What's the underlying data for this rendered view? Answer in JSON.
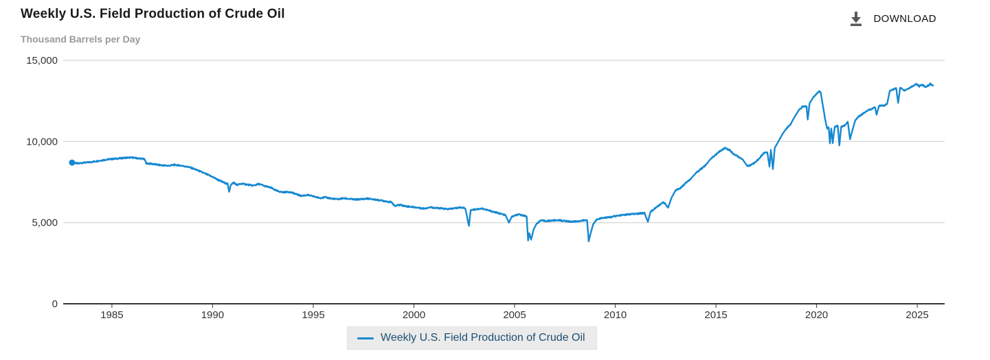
{
  "header": {
    "title": "Weekly U.S. Field Production of Crude Oil",
    "subtitle": "Thousand Barrels per Day",
    "download_label": "DOWNLOAD"
  },
  "legend": {
    "label": "Weekly U.S. Field Production of Crude Oil"
  },
  "colors": {
    "line": "#1588d1",
    "grid": "#cccccc",
    "axis": "#333333",
    "axis_text": "#333333",
    "legend_bg": "#ebebeb",
    "legend_text": "#1d4f73",
    "download_icon": "#595959"
  },
  "chart_data": {
    "type": "line",
    "title": "Weekly U.S. Field Production of Crude Oil",
    "ylabel": "Thousand Barrels per Day",
    "xlabel": "",
    "grid": "horizontal",
    "legend_position": "bottom",
    "xlim": [
      1982.58,
      2026.36
    ],
    "ylim": [
      0,
      15000
    ],
    "xticks": [
      1985,
      1990,
      1995,
      2000,
      2005,
      2010,
      2015,
      2020,
      2025
    ],
    "yticks": [
      {
        "value": 0,
        "label": "0"
      },
      {
        "value": 5000,
        "label": "5,000"
      },
      {
        "value": 10000,
        "label": "10,000"
      },
      {
        "value": 15000,
        "label": "15,000"
      }
    ],
    "weekly_jitter": 40,
    "first_point_marker": true,
    "series": [
      {
        "name": "Weekly U.S. Field Production of Crude Oil",
        "units": "Thousand Barrels per Day",
        "points": [
          [
            1983.02,
            8700
          ],
          [
            1983.3,
            8640
          ],
          [
            1983.6,
            8700
          ],
          [
            1983.9,
            8720
          ],
          [
            1984.2,
            8780
          ],
          [
            1984.5,
            8840
          ],
          [
            1984.8,
            8900
          ],
          [
            1985.1,
            8930
          ],
          [
            1985.4,
            8960
          ],
          [
            1985.7,
            9000
          ],
          [
            1986.0,
            9010
          ],
          [
            1986.3,
            8960
          ],
          [
            1986.6,
            8920
          ],
          [
            1986.72,
            8650
          ],
          [
            1987.0,
            8620
          ],
          [
            1987.4,
            8540
          ],
          [
            1987.8,
            8500
          ],
          [
            1988.1,
            8560
          ],
          [
            1988.4,
            8520
          ],
          [
            1988.8,
            8430
          ],
          [
            1989.1,
            8300
          ],
          [
            1989.4,
            8150
          ],
          [
            1989.7,
            7980
          ],
          [
            1990.0,
            7820
          ],
          [
            1990.25,
            7650
          ],
          [
            1990.5,
            7500
          ],
          [
            1990.75,
            7380
          ],
          [
            1990.82,
            6900
          ],
          [
            1990.9,
            7300
          ],
          [
            1991.05,
            7480
          ],
          [
            1991.2,
            7320
          ],
          [
            1991.45,
            7400
          ],
          [
            1991.7,
            7350
          ],
          [
            1992.0,
            7280
          ],
          [
            1992.3,
            7380
          ],
          [
            1992.6,
            7250
          ],
          [
            1992.9,
            7150
          ],
          [
            1993.2,
            6950
          ],
          [
            1993.5,
            6870
          ],
          [
            1993.8,
            6900
          ],
          [
            1994.1,
            6780
          ],
          [
            1994.4,
            6650
          ],
          [
            1994.7,
            6700
          ],
          [
            1995.0,
            6620
          ],
          [
            1995.3,
            6520
          ],
          [
            1995.6,
            6560
          ],
          [
            1995.9,
            6480
          ],
          [
            1996.2,
            6440
          ],
          [
            1996.5,
            6500
          ],
          [
            1996.8,
            6460
          ],
          [
            1997.1,
            6420
          ],
          [
            1997.4,
            6450
          ],
          [
            1997.7,
            6480
          ],
          [
            1998.0,
            6430
          ],
          [
            1998.3,
            6380
          ],
          [
            1998.6,
            6320
          ],
          [
            1998.9,
            6250
          ],
          [
            1999.05,
            6020
          ],
          [
            1999.3,
            6100
          ],
          [
            1999.6,
            6010
          ],
          [
            1999.9,
            5970
          ],
          [
            2000.2,
            5920
          ],
          [
            2000.5,
            5870
          ],
          [
            2000.8,
            5950
          ],
          [
            2001.1,
            5900
          ],
          [
            2001.4,
            5870
          ],
          [
            2001.7,
            5830
          ],
          [
            2002.0,
            5880
          ],
          [
            2002.3,
            5940
          ],
          [
            2002.55,
            5900
          ],
          [
            2002.73,
            4800
          ],
          [
            2002.82,
            5780
          ],
          [
            2003.1,
            5830
          ],
          [
            2003.4,
            5870
          ],
          [
            2003.7,
            5750
          ],
          [
            2004.0,
            5650
          ],
          [
            2004.3,
            5550
          ],
          [
            2004.55,
            5450
          ],
          [
            2004.72,
            5000
          ],
          [
            2004.85,
            5350
          ],
          [
            2005.0,
            5430
          ],
          [
            2005.2,
            5500
          ],
          [
            2005.45,
            5440
          ],
          [
            2005.6,
            5380
          ],
          [
            2005.67,
            3900
          ],
          [
            2005.73,
            4350
          ],
          [
            2005.82,
            3950
          ],
          [
            2005.95,
            4600
          ],
          [
            2006.1,
            4950
          ],
          [
            2006.3,
            5130
          ],
          [
            2006.6,
            5100
          ],
          [
            2006.9,
            5130
          ],
          [
            2007.2,
            5150
          ],
          [
            2007.5,
            5100
          ],
          [
            2007.8,
            5060
          ],
          [
            2008.1,
            5080
          ],
          [
            2008.35,
            5120
          ],
          [
            2008.6,
            5150
          ],
          [
            2008.68,
            3850
          ],
          [
            2008.78,
            4350
          ],
          [
            2008.9,
            4900
          ],
          [
            2009.1,
            5220
          ],
          [
            2009.4,
            5300
          ],
          [
            2009.7,
            5330
          ],
          [
            2010.0,
            5400
          ],
          [
            2010.3,
            5460
          ],
          [
            2010.6,
            5500
          ],
          [
            2010.9,
            5530
          ],
          [
            2011.2,
            5560
          ],
          [
            2011.45,
            5600
          ],
          [
            2011.62,
            5050
          ],
          [
            2011.75,
            5670
          ],
          [
            2011.95,
            5850
          ],
          [
            2012.15,
            6050
          ],
          [
            2012.4,
            6250
          ],
          [
            2012.63,
            5950
          ],
          [
            2012.8,
            6550
          ],
          [
            2013.0,
            7000
          ],
          [
            2013.25,
            7150
          ],
          [
            2013.5,
            7450
          ],
          [
            2013.75,
            7700
          ],
          [
            2014.0,
            8050
          ],
          [
            2014.25,
            8300
          ],
          [
            2014.5,
            8550
          ],
          [
            2014.75,
            8950
          ],
          [
            2015.0,
            9190
          ],
          [
            2015.2,
            9400
          ],
          [
            2015.45,
            9610
          ],
          [
            2015.7,
            9450
          ],
          [
            2015.9,
            9220
          ],
          [
            2016.1,
            9080
          ],
          [
            2016.35,
            8850
          ],
          [
            2016.55,
            8500
          ],
          [
            2016.75,
            8550
          ],
          [
            2016.95,
            8700
          ],
          [
            2017.15,
            8950
          ],
          [
            2017.35,
            9250
          ],
          [
            2017.55,
            9350
          ],
          [
            2017.66,
            8450
          ],
          [
            2017.73,
            9480
          ],
          [
            2017.83,
            8300
          ],
          [
            2017.92,
            9600
          ],
          [
            2018.1,
            10000
          ],
          [
            2018.3,
            10450
          ],
          [
            2018.5,
            10800
          ],
          [
            2018.7,
            11050
          ],
          [
            2018.9,
            11500
          ],
          [
            2019.1,
            11900
          ],
          [
            2019.3,
            12150
          ],
          [
            2019.5,
            12150
          ],
          [
            2019.56,
            11350
          ],
          [
            2019.65,
            12350
          ],
          [
            2019.85,
            12750
          ],
          [
            2020.0,
            12950
          ],
          [
            2020.13,
            13100
          ],
          [
            2020.2,
            13050
          ],
          [
            2020.3,
            12300
          ],
          [
            2020.42,
            11400
          ],
          [
            2020.52,
            10800
          ],
          [
            2020.6,
            10900
          ],
          [
            2020.66,
            9880
          ],
          [
            2020.73,
            10800
          ],
          [
            2020.8,
            9900
          ],
          [
            2020.9,
            10900
          ],
          [
            2021.05,
            11000
          ],
          [
            2021.13,
            9760
          ],
          [
            2021.22,
            10900
          ],
          [
            2021.4,
            11000
          ],
          [
            2021.55,
            11200
          ],
          [
            2021.66,
            10140
          ],
          [
            2021.78,
            10700
          ],
          [
            2021.92,
            11300
          ],
          [
            2022.1,
            11550
          ],
          [
            2022.3,
            11700
          ],
          [
            2022.5,
            11900
          ],
          [
            2022.72,
            12000
          ],
          [
            2022.9,
            12100
          ],
          [
            2022.98,
            11650
          ],
          [
            2023.1,
            12200
          ],
          [
            2023.3,
            12200
          ],
          [
            2023.5,
            12300
          ],
          [
            2023.63,
            13100
          ],
          [
            2023.8,
            13200
          ],
          [
            2023.95,
            13300
          ],
          [
            2024.05,
            12380
          ],
          [
            2024.15,
            13300
          ],
          [
            2024.35,
            13150
          ],
          [
            2024.55,
            13250
          ],
          [
            2024.75,
            13400
          ],
          [
            2024.95,
            13550
          ],
          [
            2025.1,
            13400
          ],
          [
            2025.25,
            13500
          ],
          [
            2025.4,
            13350
          ],
          [
            2025.55,
            13450
          ],
          [
            2025.65,
            13550
          ],
          [
            2025.78,
            13450
          ]
        ]
      }
    ]
  }
}
